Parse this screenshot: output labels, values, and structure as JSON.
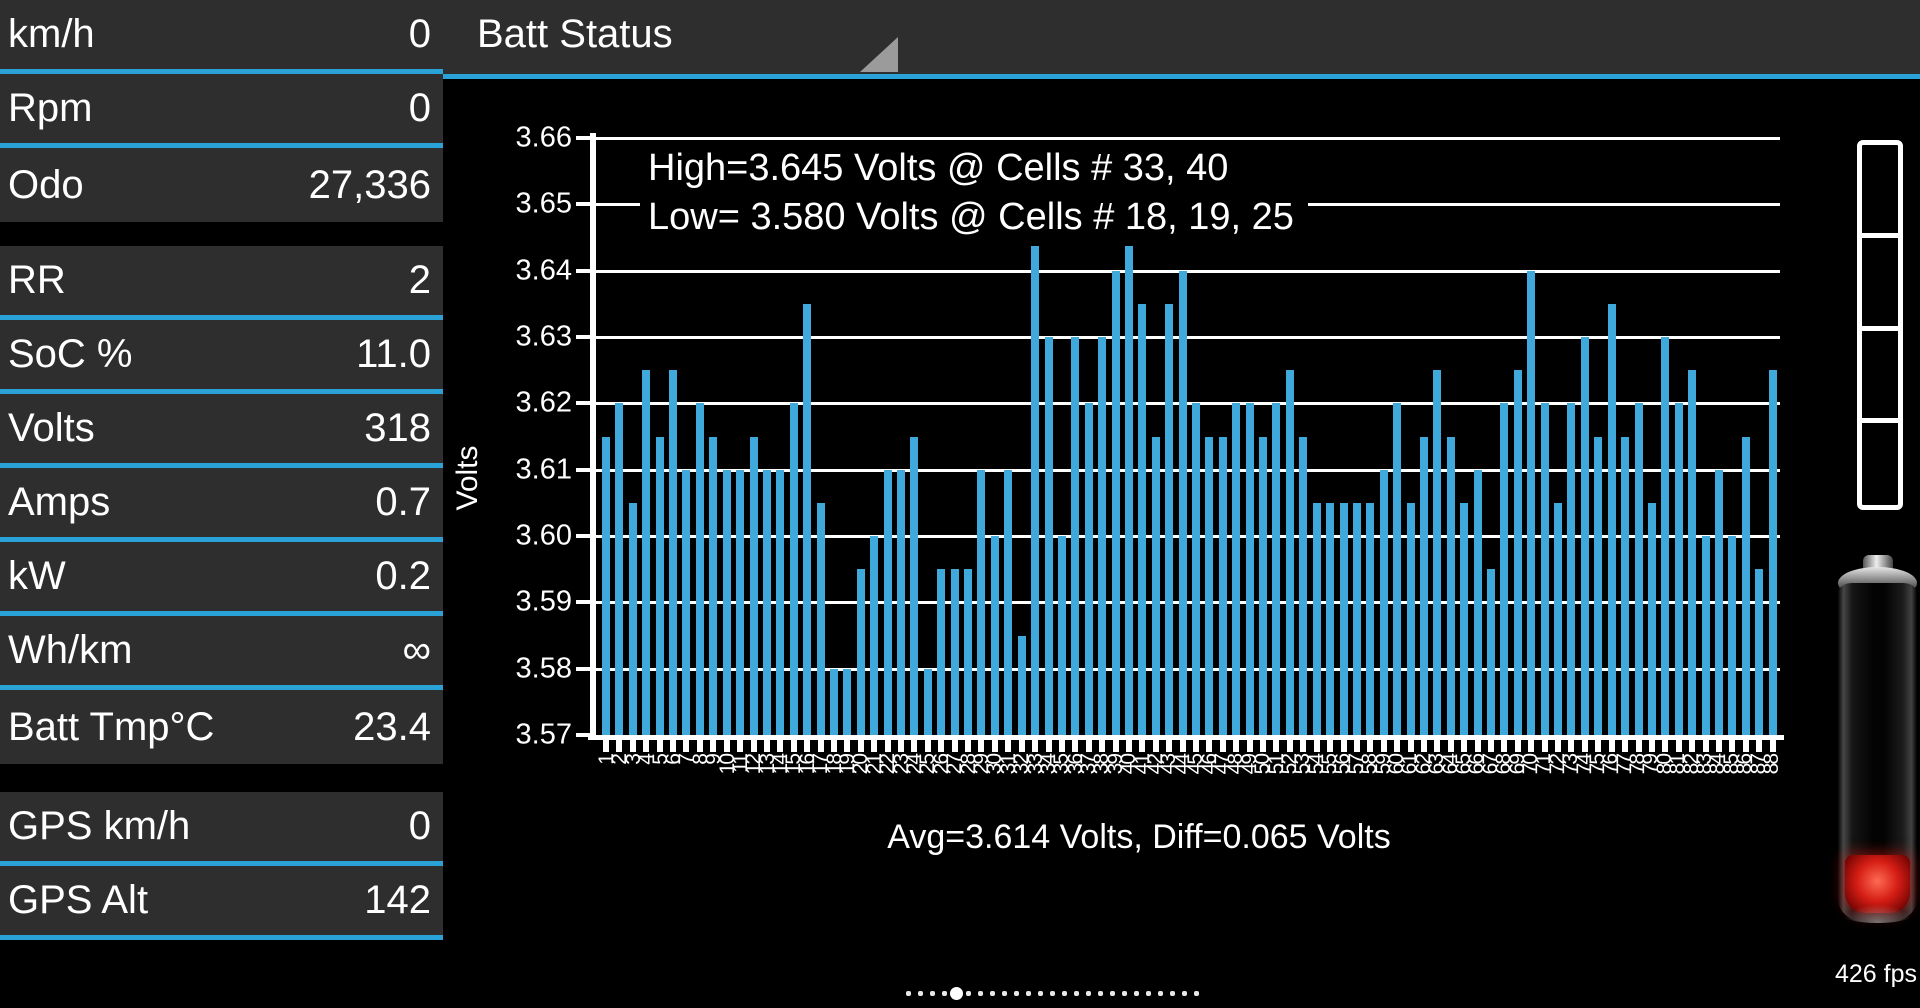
{
  "header": {
    "title": "Batt Status"
  },
  "sidebar": {
    "groups": [
      [
        {
          "label": "km/h",
          "value": "0"
        },
        {
          "label": "Rpm",
          "value": "0"
        },
        {
          "label": "Odo",
          "value": "27,336"
        }
      ],
      [
        {
          "label": "RR",
          "value": "2"
        },
        {
          "label": "SoC %",
          "value": "11.0"
        },
        {
          "label": "Volts",
          "value": "318"
        },
        {
          "label": "Amps",
          "value": "0.7"
        },
        {
          "label": "kW",
          "value": "0.2"
        },
        {
          "label": "Wh/km",
          "value": "∞"
        },
        {
          "label": "Batt Tmp°C",
          "value": "23.4"
        }
      ],
      [
        {
          "label": "GPS km/h",
          "value": "0"
        },
        {
          "label": "GPS Alt",
          "value": "142"
        }
      ]
    ]
  },
  "chart_data": {
    "type": "bar",
    "title": "Batt Status",
    "ylabel": "Volts",
    "xlabel": "",
    "ylim": [
      3.57,
      3.66
    ],
    "grid": true,
    "bar_color": "#3fa9dc",
    "yticks": [
      "3.66",
      "3.65",
      "3.64",
      "3.63",
      "3.62",
      "3.61",
      "3.60",
      "3.59",
      "3.58",
      "3.57"
    ],
    "categories": [
      1,
      2,
      3,
      4,
      5,
      6,
      7,
      8,
      9,
      10,
      11,
      12,
      13,
      14,
      15,
      16,
      17,
      18,
      19,
      20,
      21,
      22,
      23,
      24,
      25,
      26,
      27,
      28,
      29,
      30,
      31,
      32,
      33,
      34,
      35,
      36,
      37,
      38,
      39,
      40,
      41,
      42,
      43,
      44,
      45,
      46,
      47,
      48,
      49,
      50,
      51,
      52,
      53,
      54,
      55,
      56,
      57,
      58,
      59,
      60,
      61,
      62,
      63,
      64,
      65,
      66,
      67,
      68,
      69,
      70,
      71,
      72,
      73,
      74,
      75,
      76,
      77,
      78,
      79,
      80,
      81,
      82,
      83,
      84,
      85,
      86,
      87,
      88
    ],
    "values": [
      3.615,
      3.62,
      3.605,
      3.625,
      3.615,
      3.625,
      3.61,
      3.62,
      3.615,
      3.61,
      3.61,
      3.615,
      3.61,
      3.61,
      3.62,
      3.635,
      3.605,
      3.58,
      3.58,
      3.595,
      3.6,
      3.61,
      3.61,
      3.615,
      3.58,
      3.595,
      3.595,
      3.595,
      3.61,
      3.6,
      3.61,
      3.585,
      3.645,
      3.63,
      3.6,
      3.63,
      3.62,
      3.63,
      3.64,
      3.645,
      3.635,
      3.615,
      3.635,
      3.64,
      3.62,
      3.615,
      3.615,
      3.62,
      3.62,
      3.615,
      3.62,
      3.625,
      3.615,
      3.605,
      3.605,
      3.605,
      3.605,
      3.605,
      3.61,
      3.62,
      3.605,
      3.615,
      3.625,
      3.615,
      3.605,
      3.61,
      3.595,
      3.62,
      3.625,
      3.64,
      3.62,
      3.605,
      3.62,
      3.63,
      3.615,
      3.635,
      3.615,
      3.62,
      3.605,
      3.63,
      3.62,
      3.625,
      3.6,
      3.61,
      3.6,
      3.615,
      3.595,
      3.625
    ],
    "annotations": {
      "high_line": "High=3.645 Volts @ Cells # 33, 40",
      "low_line": "Low= 3.580 Volts @ Cells # 18, 19, 25",
      "avg_line": "Avg=3.614 Volts, Diff=0.065 Volts"
    }
  },
  "battery_gauge": {
    "segments": 4
  },
  "page_indicator": {
    "count": 25,
    "active_index": 4
  },
  "fps_label": "426 fps",
  "colors": {
    "background": "#000000",
    "tile": "#2e2e2e",
    "separator": "#2aa2d8",
    "bar": "#3fa9dc",
    "text": "#ffffff",
    "battery_low": "#d41d14"
  }
}
